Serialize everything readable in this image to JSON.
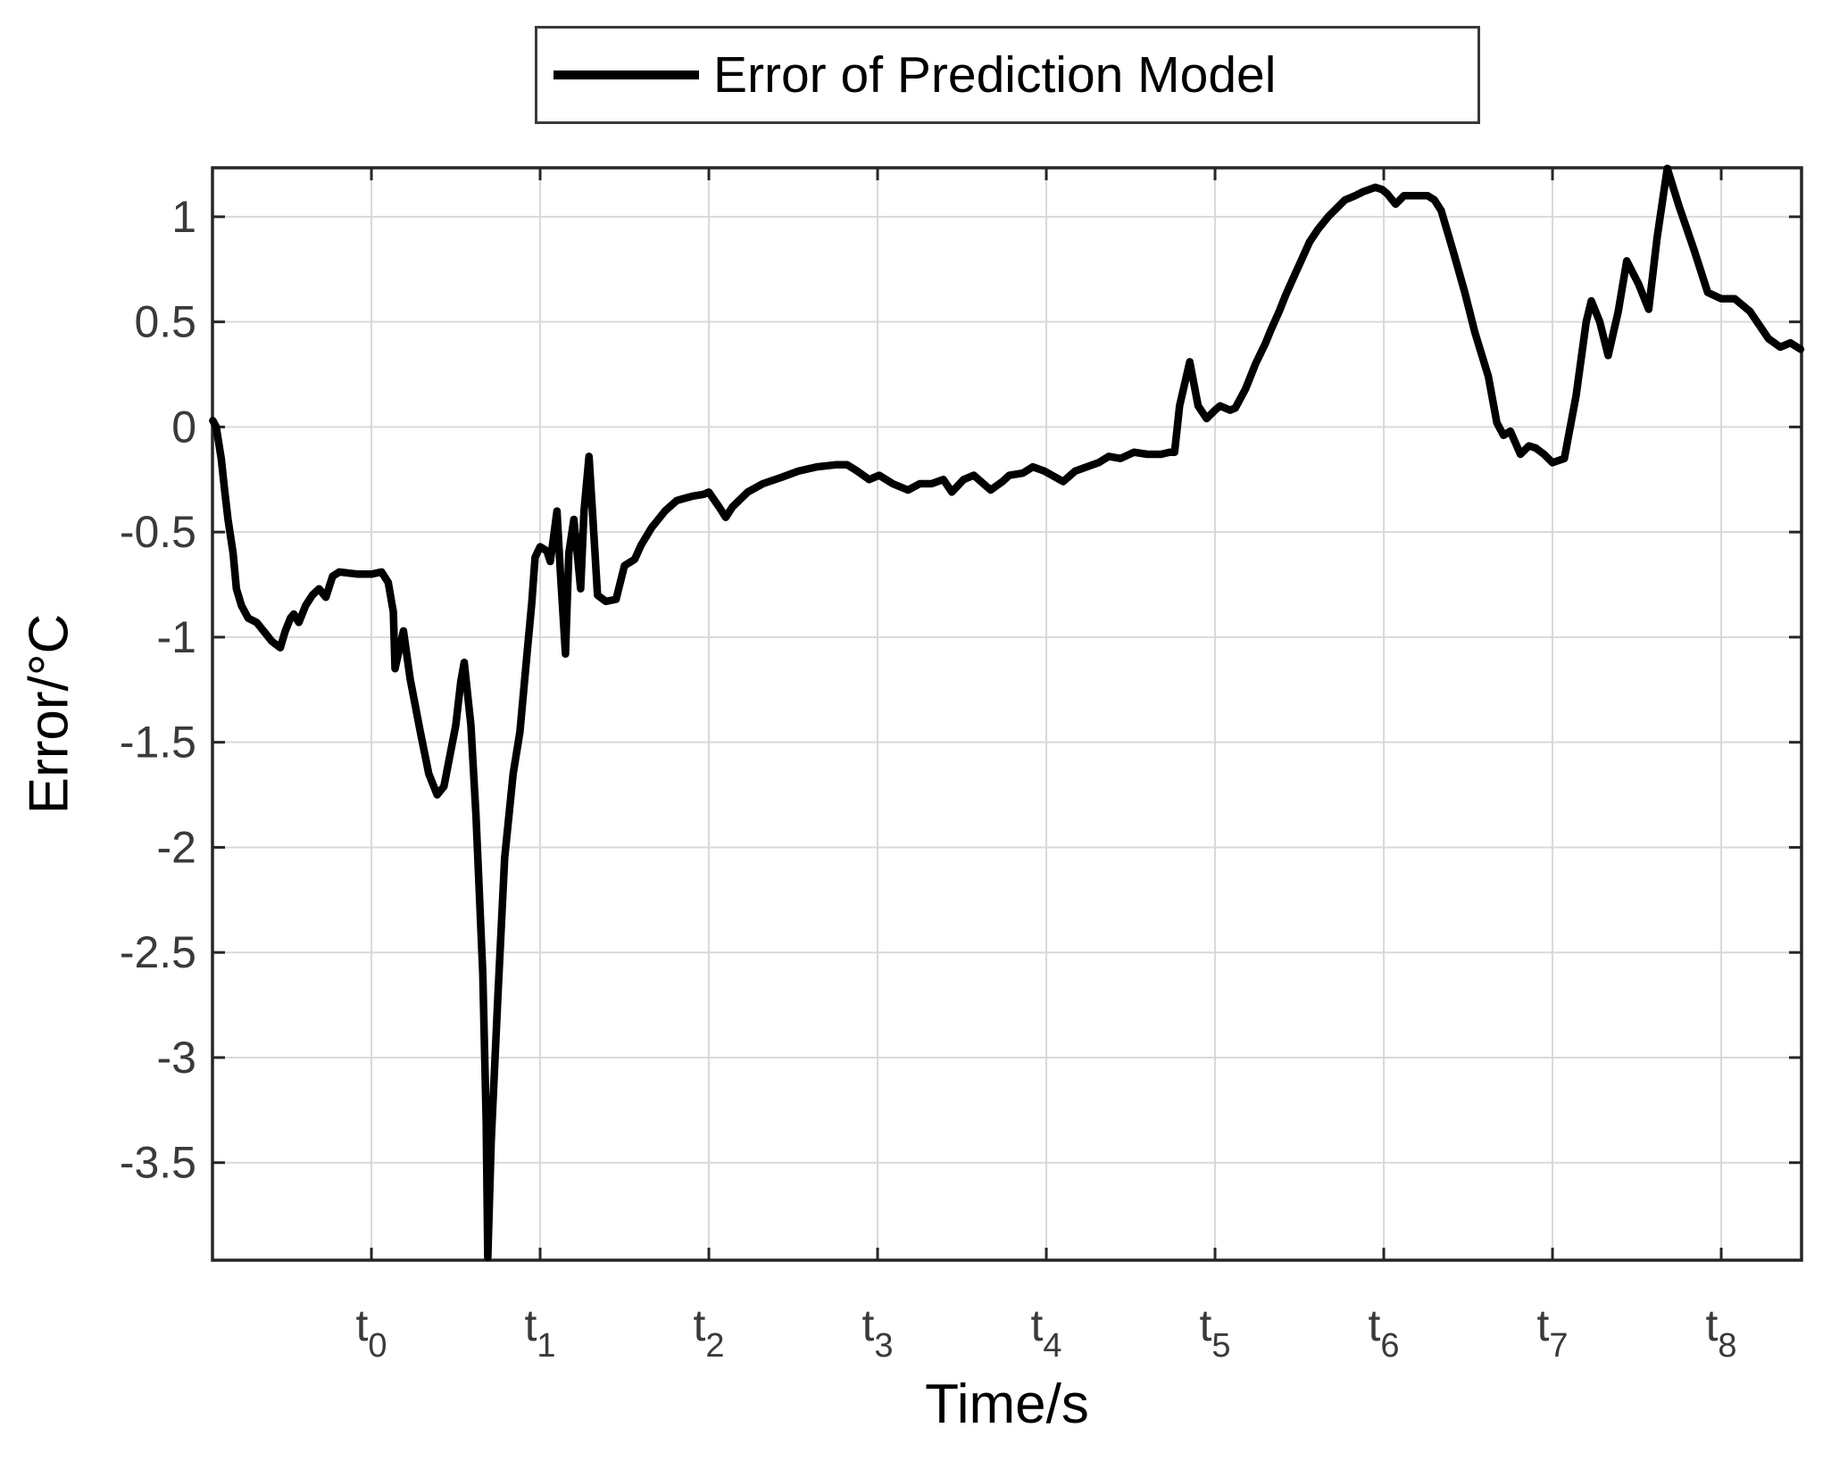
{
  "figure": {
    "background": "#ffffff"
  },
  "legend": {
    "label": "Error of Prediction Model"
  },
  "axes": {
    "xlabel": "Time/s",
    "ylabel": "Error/°C"
  },
  "style": {
    "line_color": "#000000",
    "grid_color": "#d9d9d9",
    "frame_color": "#262626",
    "tick_color": "#262626",
    "tick_label_color": "#3a3a3a"
  },
  "chart_data": {
    "type": "line",
    "title": "",
    "xlabel": "Time/s",
    "ylabel": "Error/°C",
    "legend_entries": [
      "Error of Prediction Model"
    ],
    "legend_position": "top-outside",
    "grid": true,
    "xlim": [
      -0.942,
      8.476
    ],
    "ylim": [
      -3.964,
      1.233
    ],
    "x_ticks": [
      {
        "t": 0,
        "base": "t",
        "sub": "0"
      },
      {
        "t": 1,
        "base": "t",
        "sub": "1"
      },
      {
        "t": 2,
        "base": "t",
        "sub": "2"
      },
      {
        "t": 3,
        "base": "t",
        "sub": "3"
      },
      {
        "t": 4,
        "base": "t",
        "sub": "4"
      },
      {
        "t": 5,
        "base": "t",
        "sub": "5"
      },
      {
        "t": 6,
        "base": "t",
        "sub": "6"
      },
      {
        "t": 7,
        "base": "t",
        "sub": "7"
      },
      {
        "t": 8,
        "base": "t",
        "sub": "8"
      }
    ],
    "y_ticks": [
      1,
      0.5,
      0,
      -0.5,
      -1,
      -1.5,
      -2,
      -2.5,
      -3,
      -3.5
    ],
    "series": [
      {
        "name": "Error of Prediction Model",
        "color": "#000000",
        "line_width": 8.5,
        "points": [
          [
            -0.94,
            0.03
          ],
          [
            -0.92,
            0.0
          ],
          [
            -0.89,
            -0.15
          ],
          [
            -0.87,
            -0.3
          ],
          [
            -0.85,
            -0.44
          ],
          [
            -0.82,
            -0.6
          ],
          [
            -0.8,
            -0.77
          ],
          [
            -0.77,
            -0.85
          ],
          [
            -0.73,
            -0.91
          ],
          [
            -0.68,
            -0.93
          ],
          [
            -0.63,
            -0.98
          ],
          [
            -0.59,
            -1.02
          ],
          [
            -0.54,
            -1.05
          ],
          [
            -0.51,
            -0.97
          ],
          [
            -0.48,
            -0.91
          ],
          [
            -0.46,
            -0.89
          ],
          [
            -0.43,
            -0.93
          ],
          [
            -0.39,
            -0.85
          ],
          [
            -0.35,
            -0.8
          ],
          [
            -0.31,
            -0.77
          ],
          [
            -0.27,
            -0.81
          ],
          [
            -0.23,
            -0.71
          ],
          [
            -0.19,
            -0.69
          ],
          [
            -0.08,
            -0.7
          ],
          [
            0.0,
            -0.7
          ],
          [
            0.06,
            -0.69
          ],
          [
            0.1,
            -0.74
          ],
          [
            0.13,
            -0.88
          ],
          [
            0.14,
            -1.15
          ],
          [
            0.19,
            -0.97
          ],
          [
            0.23,
            -1.2
          ],
          [
            0.29,
            -1.45
          ],
          [
            0.34,
            -1.65
          ],
          [
            0.39,
            -1.75
          ],
          [
            0.43,
            -1.71
          ],
          [
            0.5,
            -1.42
          ],
          [
            0.53,
            -1.21
          ],
          [
            0.55,
            -1.12
          ],
          [
            0.59,
            -1.42
          ],
          [
            0.62,
            -1.85
          ],
          [
            0.66,
            -2.6
          ],
          [
            0.68,
            -3.3
          ],
          [
            0.69,
            -3.95
          ],
          [
            0.71,
            -3.4
          ],
          [
            0.75,
            -2.7
          ],
          [
            0.79,
            -2.05
          ],
          [
            0.84,
            -1.65
          ],
          [
            0.88,
            -1.45
          ],
          [
            0.92,
            -1.1
          ],
          [
            0.95,
            -0.84
          ],
          [
            0.97,
            -0.62
          ],
          [
            1.0,
            -0.57
          ],
          [
            1.04,
            -0.59
          ],
          [
            1.06,
            -0.64
          ],
          [
            1.08,
            -0.52
          ],
          [
            1.1,
            -0.4
          ],
          [
            1.12,
            -0.69
          ],
          [
            1.15,
            -1.08
          ],
          [
            1.17,
            -0.6
          ],
          [
            1.2,
            -0.44
          ],
          [
            1.22,
            -0.6
          ],
          [
            1.24,
            -0.77
          ],
          [
            1.26,
            -0.4
          ],
          [
            1.29,
            -0.14
          ],
          [
            1.32,
            -0.53
          ],
          [
            1.34,
            -0.8
          ],
          [
            1.39,
            -0.83
          ],
          [
            1.45,
            -0.82
          ],
          [
            1.5,
            -0.66
          ],
          [
            1.56,
            -0.63
          ],
          [
            1.6,
            -0.56
          ],
          [
            1.66,
            -0.48
          ],
          [
            1.74,
            -0.4
          ],
          [
            1.81,
            -0.35
          ],
          [
            1.9,
            -0.33
          ],
          [
            1.97,
            -0.32
          ],
          [
            2.0,
            -0.31
          ],
          [
            2.06,
            -0.38
          ],
          [
            2.1,
            -0.43
          ],
          [
            2.14,
            -0.38
          ],
          [
            2.23,
            -0.31
          ],
          [
            2.32,
            -0.27
          ],
          [
            2.43,
            -0.24
          ],
          [
            2.53,
            -0.21
          ],
          [
            2.64,
            -0.19
          ],
          [
            2.75,
            -0.18
          ],
          [
            2.82,
            -0.18
          ],
          [
            2.88,
            -0.21
          ],
          [
            2.95,
            -0.25
          ],
          [
            3.01,
            -0.23
          ],
          [
            3.09,
            -0.27
          ],
          [
            3.18,
            -0.3
          ],
          [
            3.25,
            -0.27
          ],
          [
            3.32,
            -0.27
          ],
          [
            3.39,
            -0.25
          ],
          [
            3.44,
            -0.31
          ],
          [
            3.51,
            -0.25
          ],
          [
            3.57,
            -0.23
          ],
          [
            3.67,
            -0.3
          ],
          [
            3.74,
            -0.26
          ],
          [
            3.78,
            -0.23
          ],
          [
            3.86,
            -0.22
          ],
          [
            3.92,
            -0.19
          ],
          [
            3.99,
            -0.21
          ],
          [
            4.1,
            -0.26
          ],
          [
            4.17,
            -0.21
          ],
          [
            4.24,
            -0.19
          ],
          [
            4.31,
            -0.17
          ],
          [
            4.37,
            -0.14
          ],
          [
            4.44,
            -0.15
          ],
          [
            4.52,
            -0.12
          ],
          [
            4.6,
            -0.13
          ],
          [
            4.68,
            -0.13
          ],
          [
            4.73,
            -0.12
          ],
          [
            4.76,
            -0.12
          ],
          [
            4.79,
            0.1
          ],
          [
            4.85,
            0.31
          ],
          [
            4.9,
            0.1
          ],
          [
            4.95,
            0.04
          ],
          [
            5.0,
            0.08
          ],
          [
            5.03,
            0.1
          ],
          [
            5.09,
            0.08
          ],
          [
            5.12,
            0.09
          ],
          [
            5.18,
            0.18
          ],
          [
            5.24,
            0.3
          ],
          [
            5.3,
            0.4
          ],
          [
            5.33,
            0.46
          ],
          [
            5.38,
            0.55
          ],
          [
            5.42,
            0.63
          ],
          [
            5.47,
            0.72
          ],
          [
            5.51,
            0.79
          ],
          [
            5.56,
            0.88
          ],
          [
            5.61,
            0.94
          ],
          [
            5.67,
            1.0
          ],
          [
            5.72,
            1.04
          ],
          [
            5.77,
            1.08
          ],
          [
            5.83,
            1.1
          ],
          [
            5.88,
            1.12
          ],
          [
            5.95,
            1.14
          ],
          [
            5.99,
            1.13
          ],
          [
            6.02,
            1.11
          ],
          [
            6.07,
            1.06
          ],
          [
            6.12,
            1.1
          ],
          [
            6.19,
            1.1
          ],
          [
            6.26,
            1.1
          ],
          [
            6.3,
            1.08
          ],
          [
            6.34,
            1.03
          ],
          [
            6.41,
            0.84
          ],
          [
            6.48,
            0.64
          ],
          [
            6.54,
            0.45
          ],
          [
            6.62,
            0.24
          ],
          [
            6.67,
            0.02
          ],
          [
            6.71,
            -0.04
          ],
          [
            6.75,
            -0.02
          ],
          [
            6.81,
            -0.13
          ],
          [
            6.86,
            -0.09
          ],
          [
            6.9,
            -0.1
          ],
          [
            6.95,
            -0.13
          ],
          [
            7.0,
            -0.17
          ],
          [
            7.07,
            -0.15
          ],
          [
            7.14,
            0.15
          ],
          [
            7.2,
            0.5
          ],
          [
            7.23,
            0.6
          ],
          [
            7.28,
            0.5
          ],
          [
            7.33,
            0.34
          ],
          [
            7.39,
            0.55
          ],
          [
            7.44,
            0.79
          ],
          [
            7.51,
            0.68
          ],
          [
            7.57,
            0.56
          ],
          [
            7.62,
            0.9
          ],
          [
            7.68,
            1.23
          ],
          [
            7.75,
            1.05
          ],
          [
            7.84,
            0.84
          ],
          [
            7.92,
            0.64
          ],
          [
            8.0,
            0.61
          ],
          [
            8.08,
            0.61
          ],
          [
            8.17,
            0.55
          ],
          [
            8.28,
            0.42
          ],
          [
            8.35,
            0.38
          ],
          [
            8.41,
            0.4
          ],
          [
            8.47,
            0.37
          ]
        ]
      }
    ]
  }
}
